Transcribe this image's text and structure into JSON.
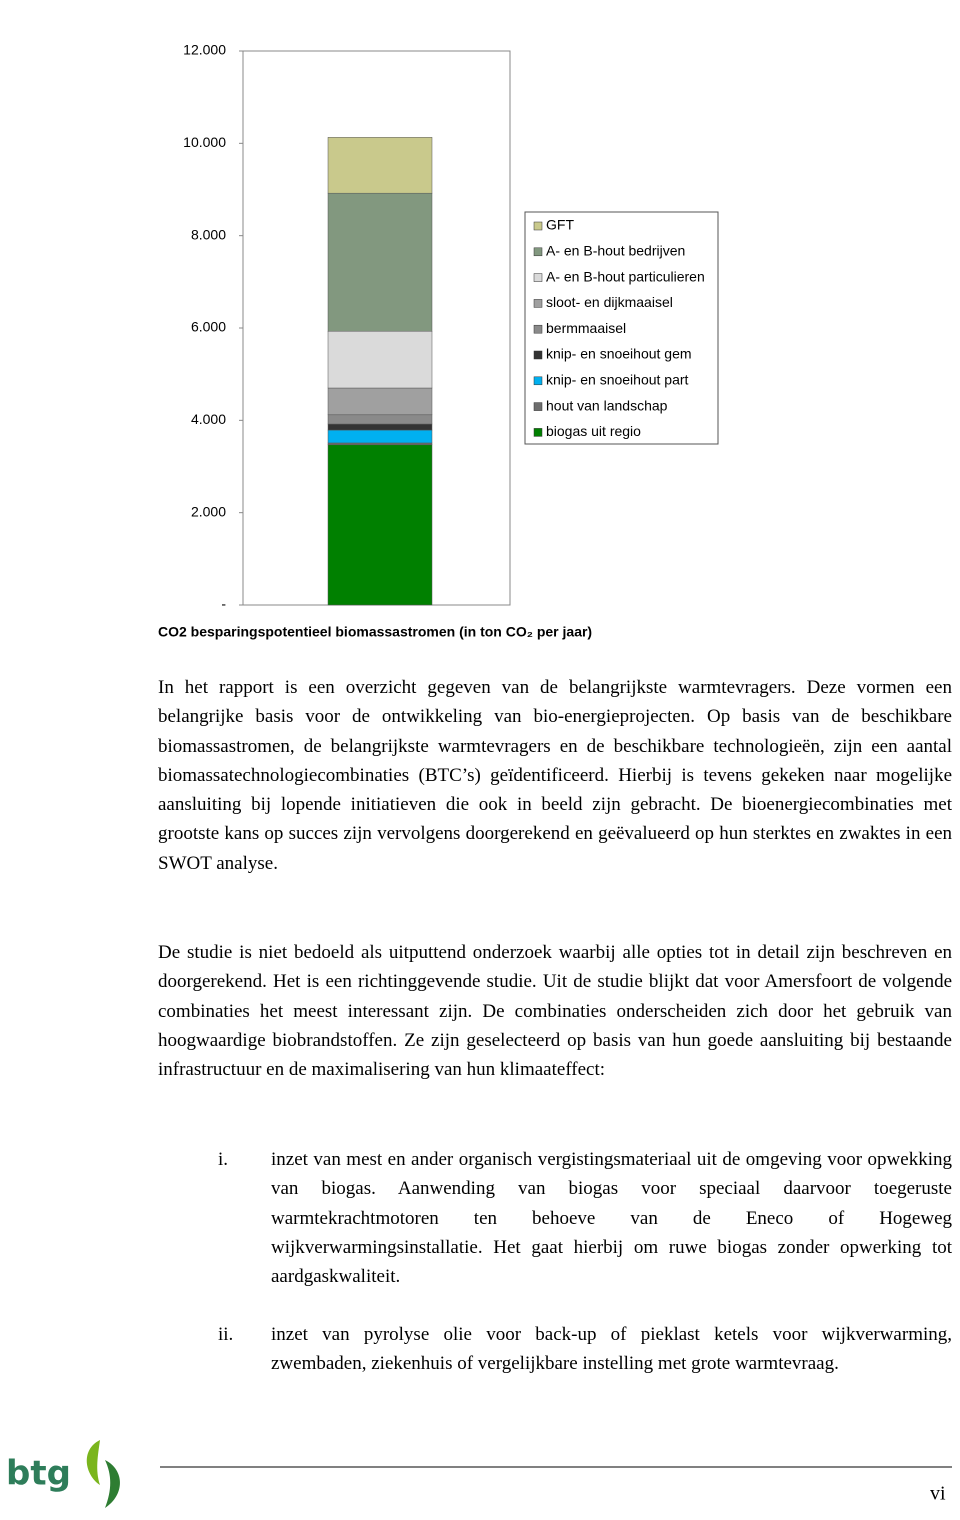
{
  "chart_data": {
    "type": "stacked-bar",
    "title": "CO2 besparingspotentieel biomassastromen (in ton CO₂ per jaar)",
    "categories": [
      null
    ],
    "series": [
      {
        "name": "biogas uit regio",
        "color": "#008000",
        "values": [
          3470
        ]
      },
      {
        "name": "hout van landschap",
        "color": "#6e6e6e",
        "values": [
          40
        ]
      },
      {
        "name": "knip- en snoeihout part",
        "color": "#00b0f0",
        "values": [
          280
        ]
      },
      {
        "name": "knip- en snoeihout gem",
        "color": "#333333",
        "values": [
          130
        ]
      },
      {
        "name": "bermmaaisel",
        "color": "#8a8a8a",
        "values": [
          200
        ]
      },
      {
        "name": "sloot- en dijkmaaisel",
        "color": "#a0a0a0",
        "values": [
          580
        ]
      },
      {
        "name": "A- en B-hout particulieren",
        "color": "#dadada",
        "values": [
          1230
        ]
      },
      {
        "name": "A- en B-hout bedrijven",
        "color": "#82987f",
        "values": [
          2990
        ]
      },
      {
        "name": "GFT",
        "color": "#c9c98c",
        "values": [
          1210
        ]
      }
    ],
    "ylim": [
      0,
      12000
    ],
    "yticks": [
      {
        "value": 0,
        "label": "-"
      },
      {
        "value": 2000,
        "label": "2.000"
      },
      {
        "value": 4000,
        "label": "4.000"
      },
      {
        "value": 6000,
        "label": "6.000"
      },
      {
        "value": 8000,
        "label": "8.000"
      },
      {
        "value": 10000,
        "label": "10.000"
      },
      {
        "value": 12000,
        "label": "12.000"
      }
    ]
  },
  "paragraphs": [
    "In het rapport is een overzicht gegeven van de belangrijkste warmtevragers. Deze vormen een belangrijke basis voor de ontwikkeling van bio-energieprojecten. Op basis van de beschikbare biomassastromen, de belangrijkste warmtevragers en de beschikbare technologieën, zijn een aantal biomassatechnologiecombinaties (BTC’s) geïdentificeerd. Hierbij is tevens gekeken naar mogelijke aansluiting bij lopende initiatieven die ook in beeld zijn gebracht. De bioenergiecombinaties met grootste kans op succes zijn vervolgens doorgerekend en geëvalueerd op hun sterktes en zwaktes in een SWOT analyse.",
    "De studie is niet bedoeld als uitputtend onderzoek waarbij alle opties tot in detail zijn beschreven en doorgerekend. Het is een richtinggevende studie. Uit de studie blijkt dat voor Amersfoort de volgende combinaties het meest interessant zijn. De combinaties onderscheiden zich door het gebruik van hoogwaardige biobrandstoffen. Ze zijn geselecteerd op basis van hun goede aansluiting bij bestaande infrastructuur en de maximalisering van hun klimaateffect:"
  ],
  "list": [
    {
      "marker": "i.",
      "text": "inzet van mest en ander organisch vergistingsmateriaal uit de omgeving voor opwekking van biogas. Aanwending van biogas voor speciaal daarvoor toegeruste warmtekrachtmotoren ten behoeve van de Eneco of Hogeweg wijkverwarmingsinstallatie. Het gaat hierbij om ruwe biogas zonder opwerking tot aardgaskwaliteit."
    },
    {
      "marker": "ii.",
      "text": "inzet van pyrolyse olie voor back-up of pieklast ketels voor wijkverwarming, zwembaden, ziekenhuis of vergelijkbare instelling met grote warmtevraag."
    }
  ],
  "footer": {
    "logo": "btg",
    "page": "vi"
  }
}
